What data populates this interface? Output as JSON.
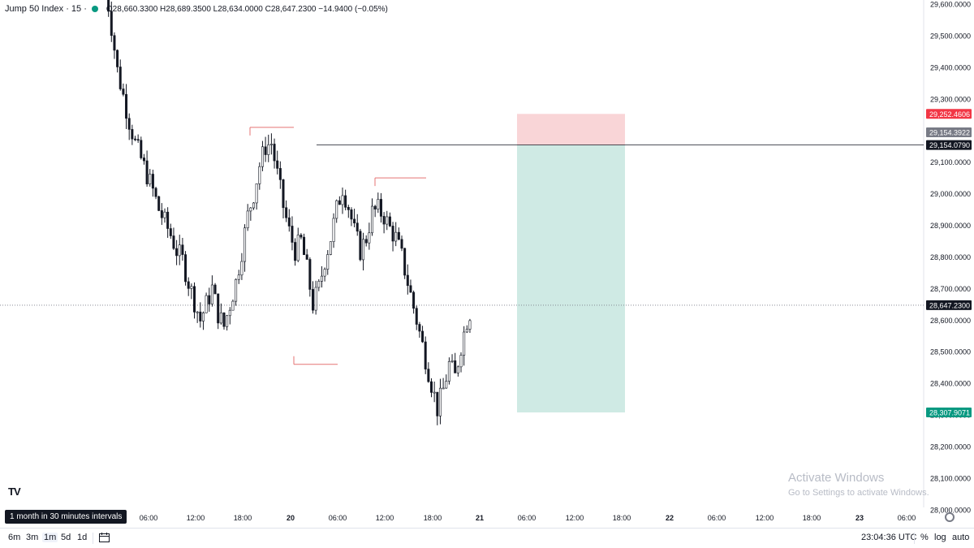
{
  "legend": {
    "symbol": "Jump 50 Index · 15 ·",
    "ohlc": "O28,660.3300 H28,689.3500 L28,634.0000 C28,647.2300 −14.9400 (−0.05%)"
  },
  "chart_data": {
    "type": "candlestick",
    "y_ticks": [
      "29,600.0000",
      "29,500.0000",
      "29,400.0000",
      "29,300.0000",
      "29,200.0000",
      "29,100.0000",
      "29,000.0000",
      "28,900.0000",
      "28,800.0000",
      "28,700.0000",
      "28,600.0000",
      "28,500.0000",
      "28,400.0000",
      "28,300.0000",
      "28,200.0000",
      "28,100.0000",
      "28,000.0000"
    ],
    "y_tick_values": [
      29600,
      29500,
      29400,
      29300,
      29200,
      29100,
      29000,
      28900,
      28800,
      28700,
      28600,
      28500,
      28400,
      28300,
      28200,
      28100,
      28000
    ],
    "x_ticks": [
      "06:00",
      "12:00",
      "18:00",
      "20",
      "06:00",
      "12:00",
      "18:00",
      "21",
      "06:00",
      "12:00",
      "18:00",
      "22",
      "06:00",
      "12:00",
      "18:00",
      "23",
      "06:00"
    ],
    "price_labels": {
      "stop": "29,252.4606",
      "entry_partial": "29,154.3922",
      "entry": "29,154.0790",
      "current": "28,647.2300",
      "target": "28,307.9071"
    },
    "price_values": {
      "stop": 29252.4606,
      "entry": 29154.079,
      "current": 28647.23,
      "target": 28307.9071
    },
    "position": {
      "type": "short",
      "stop": 29252.4606,
      "entry": 29154.079,
      "target": 28307.9071
    },
    "levels": [
      {
        "price": 29210,
        "from": "day19 18:30",
        "to": "day20 00:00"
      },
      {
        "price": 29050,
        "from": "day20 12:00",
        "to": "day20 18:00"
      },
      {
        "price": 28460,
        "from": "day20 00:00",
        "to": "day20 05:30"
      }
    ],
    "close_path": [
      [
        0,
        29660
      ],
      [
        2,
        29530
      ],
      [
        4,
        29390
      ],
      [
        6,
        29310
      ],
      [
        8,
        29230
      ],
      [
        10,
        29160
      ],
      [
        12,
        29110
      ],
      [
        14,
        29060
      ],
      [
        16,
        29010
      ],
      [
        18,
        28950
      ],
      [
        20,
        28910
      ],
      [
        22,
        28870
      ],
      [
        24,
        28820
      ],
      [
        26,
        28790
      ],
      [
        28,
        28720
      ],
      [
        30,
        28660
      ],
      [
        32,
        28600
      ],
      [
        34,
        28650
      ],
      [
        36,
        28700
      ],
      [
        38,
        28620
      ],
      [
        40,
        28580
      ],
      [
        42,
        28650
      ],
      [
        44,
        28720
      ],
      [
        46,
        28820
      ],
      [
        48,
        28930
      ],
      [
        50,
        29000
      ],
      [
        52,
        29090
      ],
      [
        54,
        29150
      ],
      [
        56,
        29160
      ],
      [
        58,
        29060
      ],
      [
        60,
        28960
      ],
      [
        62,
        28880
      ],
      [
        64,
        28820
      ],
      [
        66,
        28850
      ],
      [
        68,
        28760
      ],
      [
        70,
        28650
      ],
      [
        72,
        28700
      ],
      [
        74,
        28790
      ],
      [
        76,
        28860
      ],
      [
        78,
        28950
      ],
      [
        80,
        29020
      ],
      [
        82,
        28960
      ],
      [
        84,
        28880
      ],
      [
        86,
        28820
      ],
      [
        88,
        28860
      ],
      [
        90,
        28940
      ],
      [
        92,
        28950
      ],
      [
        94,
        28930
      ],
      [
        96,
        28890
      ],
      [
        98,
        28860
      ],
      [
        100,
        28800
      ],
      [
        102,
        28720
      ],
      [
        104,
        28640
      ],
      [
        106,
        28560
      ],
      [
        108,
        28480
      ],
      [
        110,
        28400
      ],
      [
        112,
        28320
      ],
      [
        114,
        28380
      ],
      [
        116,
        28460
      ],
      [
        118,
        28420
      ],
      [
        120,
        28520
      ],
      [
        122,
        28600
      ],
      [
        124,
        28647
      ]
    ],
    "close_path_note": "x is bar index (15-min bars), y is price"
  },
  "watermark": {
    "line1": "Activate Windows",
    "line2": "Go to Settings to activate Windows."
  },
  "tv_logo": "TV",
  "tooltip": "1 month in 30 minutes intervals",
  "toolbar": {
    "timeframes": [
      "6m",
      "3m",
      "1m",
      "5d",
      "1d"
    ],
    "active_timeframe": "1m",
    "clock": "23:04:36 UTC",
    "percent": "%",
    "log": "log",
    "auto": "auto"
  },
  "colors": {
    "up": "#089981",
    "down": "#f23645",
    "candle": "#131722",
    "stop_zone": "#f9d5d7",
    "target_zone": "#cfeae4",
    "level_line": "#e57373",
    "axis_text": "#131722"
  }
}
